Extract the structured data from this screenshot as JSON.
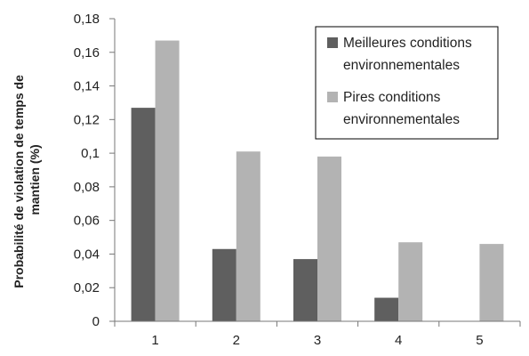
{
  "chart_data": {
    "type": "bar",
    "categories": [
      "1",
      "2",
      "3",
      "4",
      "5"
    ],
    "series": [
      {
        "name": "Meilleures conditions environnementales",
        "name_lines": [
          "Meilleures conditions",
          "environnementales"
        ],
        "color": "#5f5f5f",
        "values": [
          0.127,
          0.043,
          0.037,
          0.014,
          0
        ]
      },
      {
        "name": "Pires conditions environnementales",
        "name_lines": [
          "Pires conditions",
          "environnementales"
        ],
        "color": "#b3b3b3",
        "values": [
          0.167,
          0.101,
          0.098,
          0.047,
          0.046
        ]
      }
    ],
    "title": "",
    "xlabel": "",
    "ylabel": "Probabilité de violation de temps de mantien (%)",
    "ylabel_lines": [
      "Probabilité de violation de temps de",
      "mantien (%)"
    ],
    "ylim": [
      0,
      0.18
    ],
    "yticks": [
      "0",
      "0,02",
      "0,04",
      "0,06",
      "0,08",
      "0,1",
      "0,12",
      "0,14",
      "0,16",
      "0,18"
    ],
    "grid": false,
    "legend": "top-right"
  }
}
